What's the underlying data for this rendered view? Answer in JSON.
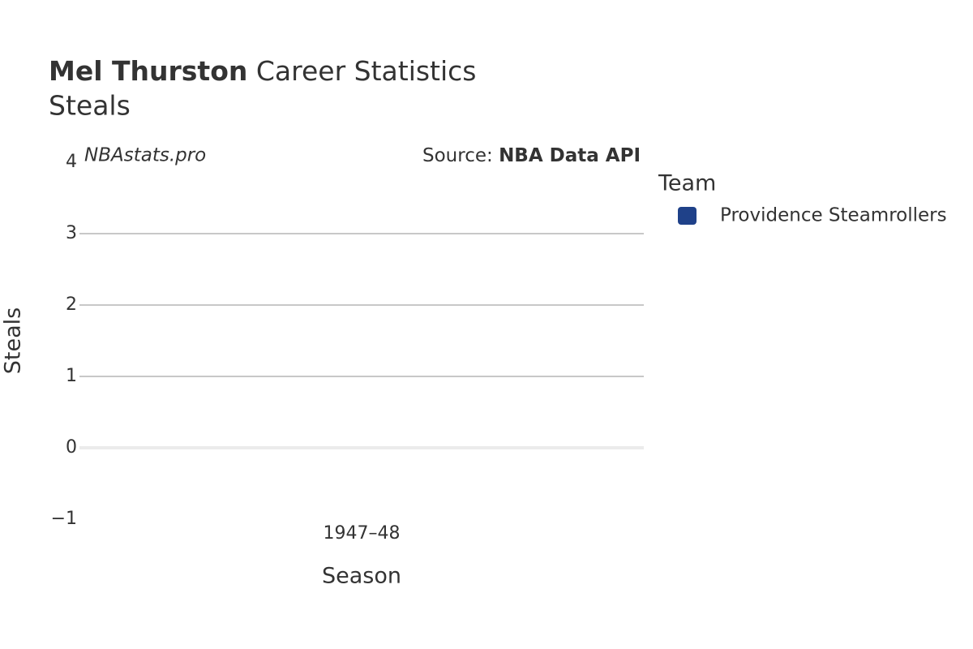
{
  "chart_data": {
    "type": "bar",
    "title": {
      "bold": "Mel Thurston",
      "rest": "Career Statistics"
    },
    "subtitle": "Steals",
    "watermark": "NBAstats.pro",
    "source": {
      "label": "Source:",
      "name": "NBA Data API"
    },
    "x_label": "Season",
    "y_label": "Steals",
    "legend_title": "Team",
    "categories": [
      "1947–48"
    ],
    "series": [
      {
        "name": "Providence Steamrollers",
        "color": "#1f4189",
        "values": [
          null
        ]
      }
    ],
    "ylim": [
      -1,
      4
    ],
    "yticks": [
      {
        "value": -1,
        "label": "−1"
      },
      0,
      1,
      2,
      3,
      4
    ],
    "grid": true
  }
}
